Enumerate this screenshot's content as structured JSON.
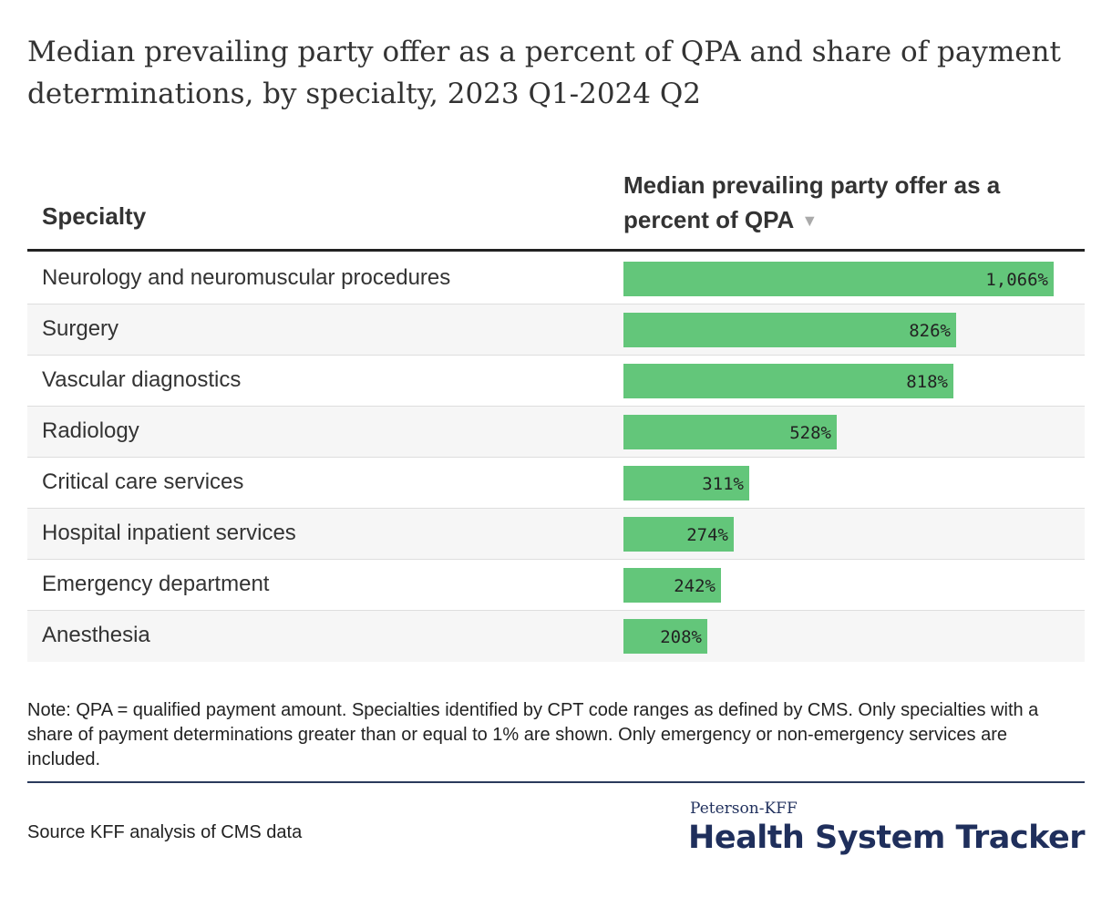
{
  "title": "Median prevailing party offer as a percent of QPA and share of payment determinations, by specialty, 2023 Q1-2024 Q2",
  "table_header": {
    "specialty": "Specialty",
    "value": "Median prevailing party offer as a percent of QPA",
    "sort_icon": "sort-down-icon"
  },
  "chart_data": {
    "type": "bar",
    "orientation": "horizontal",
    "title": "Median prevailing party offer as a percent of QPA and share of payment determinations, by specialty, 2023 Q1-2024 Q2",
    "xlabel": "Median prevailing party offer as a percent of QPA",
    "ylabel": "Specialty",
    "xlim": [
      0,
      1130
    ],
    "categories": [
      "Neurology and neuromuscular procedures",
      "Surgery",
      "Vascular diagnostics",
      "Radiology",
      "Critical care services",
      "Hospital inpatient services",
      "Emergency department",
      "Anesthesia"
    ],
    "values": [
      1066,
      826,
      818,
      528,
      311,
      274,
      242,
      208
    ],
    "labels": [
      "1,066%",
      "826%",
      "818%",
      "528%",
      "311%",
      "274%",
      "242%",
      "208%"
    ],
    "bar_color": "#63c67a"
  },
  "note": "Note: QPA = qualified payment amount. Specialties identified by CPT code ranges as defined by CMS. Only specialties with a share of payment determinations greater than or equal to 1% are shown. Only emergency or non-emergency services are included.",
  "source": "Source KFF analysis of CMS data",
  "logo": {
    "top": "Peterson-KFF",
    "main": "Health System Tracker"
  },
  "colors": {
    "bar": "#63c67a",
    "logo": "#1f2f5c",
    "rule": "#2a3a5c"
  }
}
